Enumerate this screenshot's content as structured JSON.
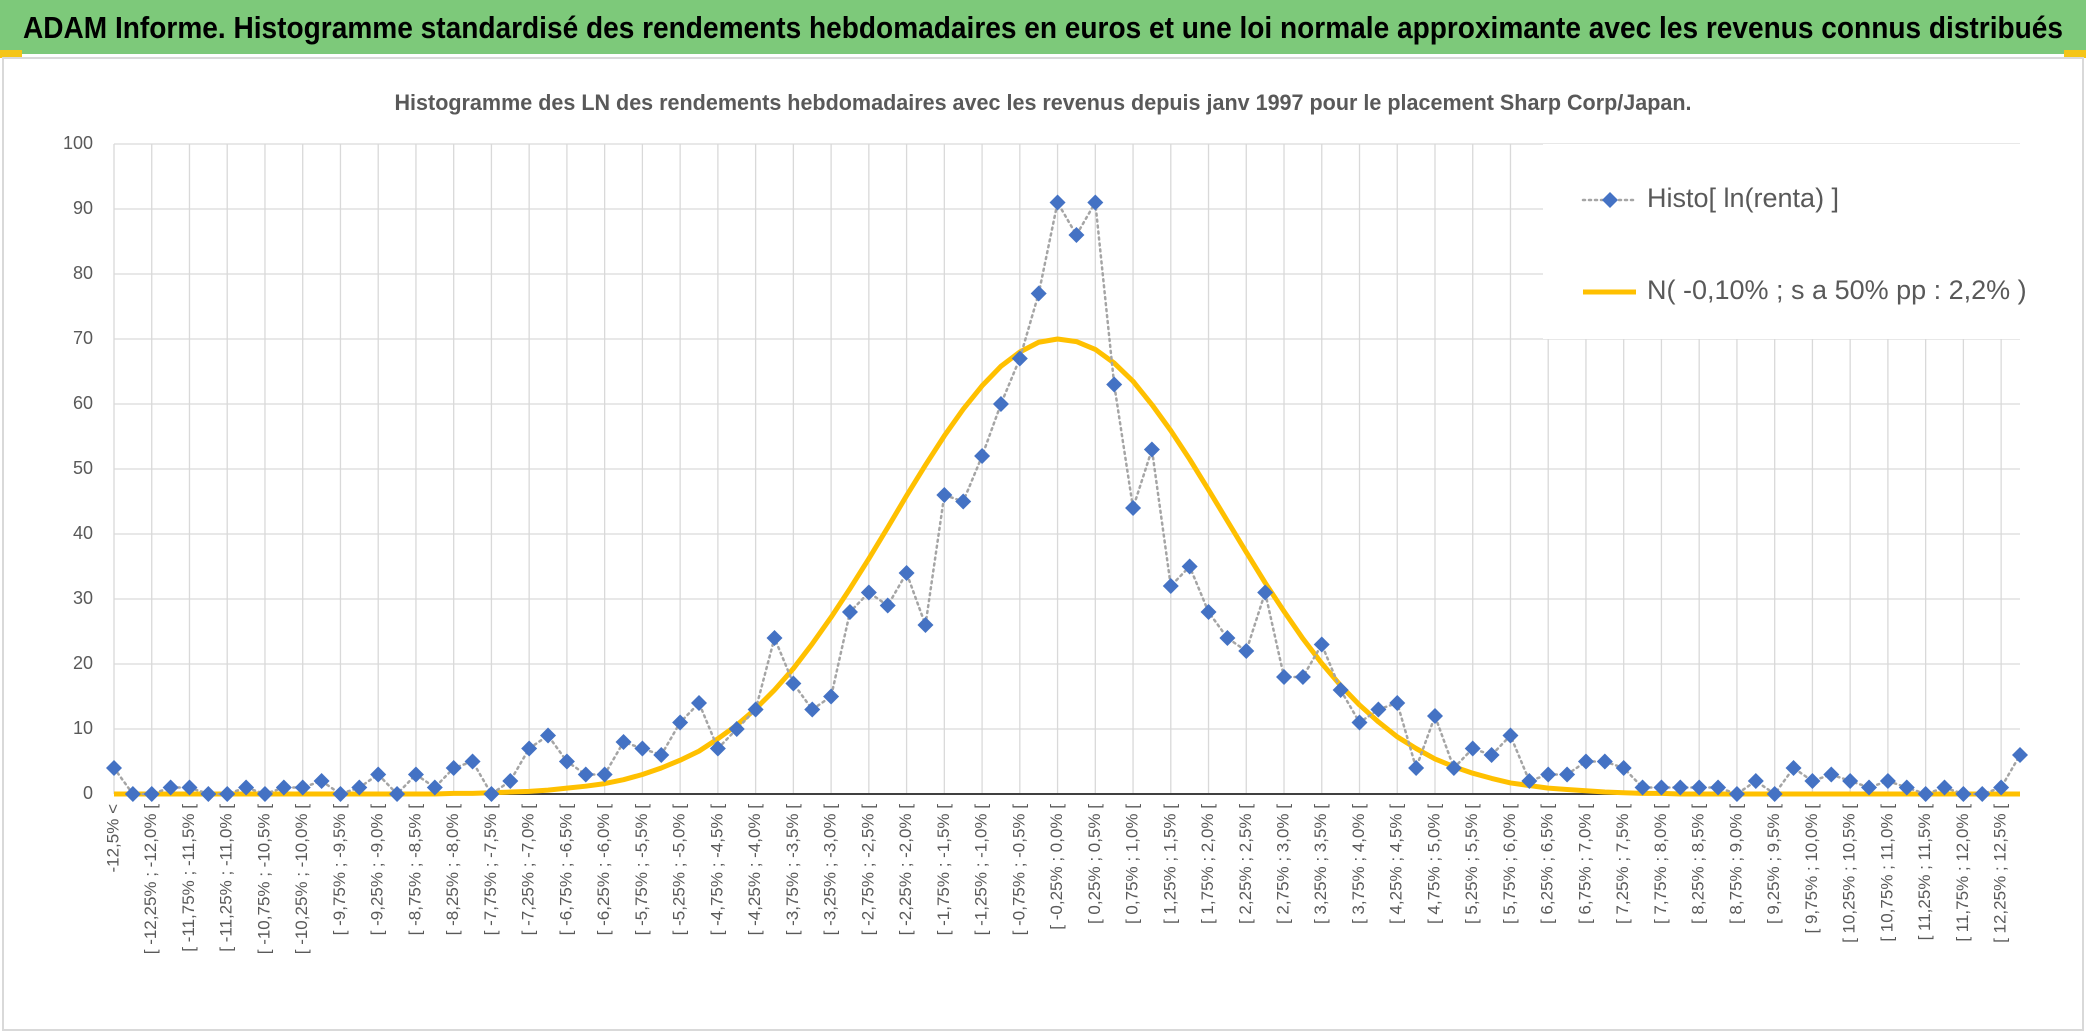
{
  "chart_data": {
    "type": "line",
    "title": "ADAM Informe. Histogramme standardisé des rendements hebdomadaires en euros et une loi normale approximante avec les revenus connus distribués",
    "subtitle": "Histogramme des LN des rendements hebdomadaires avec les revenus depuis janv 1997 pour le placement Sharp Corp/Japan.",
    "categories": [
      "-12,5% <",
      null,
      "[ -12,25% ; -12,0% [",
      null,
      "[ -11,75% ; -11,5% [",
      null,
      "[ -11,25% ; -11,0% [",
      null,
      "[ -10,75% ; -10,5% [",
      null,
      "[ -10,25% ; -10,0% [",
      null,
      "[ -9,75% ; -9,5% [",
      null,
      "[ -9,25% ; -9,0% [",
      null,
      "[ -8,75% ; -8,5% [",
      null,
      "[ -8,25% ; -8,0% [",
      null,
      "[ -7,75% ; -7,5% [",
      null,
      "[ -7,25% ; -7,0% [",
      null,
      "[ -6,75% ; -6,5% [",
      null,
      "[ -6,25% ; -6,0% [",
      null,
      "[ -5,75% ; -5,5% [",
      null,
      "[ -5,25% ; -5,0% [",
      null,
      "[ -4,75% ; -4,5% [",
      null,
      "[ -4,25% ; -4,0% [",
      null,
      "[ -3,75% ; -3,5% [",
      null,
      "[ -3,25% ; -3,0% [",
      null,
      "[ -2,75% ; -2,5% [",
      null,
      "[ -2,25% ; -2,0% [",
      null,
      "[ -1,75% ; -1,5% [",
      null,
      "[ -1,25% ; -1,0% [",
      null,
      "[ -0,75% ; -0,5% [",
      null,
      "[ -0,25% ; 0,0% [",
      null,
      "[ 0,25% ; 0,5% [",
      null,
      "[ 0,75% ; 1,0% [",
      null,
      "[ 1,25% ; 1,5% [",
      null,
      "[ 1,75% ; 2,0% [",
      null,
      "[ 2,25% ; 2,5% [",
      null,
      "[ 2,75% ; 3,0% [",
      null,
      "[ 3,25% ; 3,5% [",
      null,
      "[ 3,75% ; 4,0% [",
      null,
      "[ 4,25% ; 4,5% [",
      null,
      "[ 4,75% ; 5,0% [",
      null,
      "[ 5,25% ; 5,5% [",
      null,
      "[ 5,75% ; 6,0% [",
      null,
      "[ 6,25% ; 6,5% [",
      null,
      "[ 6,75% ; 7,0% [",
      null,
      "[ 7,25% ; 7,5% [",
      null,
      "[ 7,75% ; 8,0% [",
      null,
      "[ 8,25% ; 8,5% [",
      null,
      "[ 8,75% ; 9,0% [",
      null,
      "[ 9,25% ; 9,5% [",
      null,
      "[ 9,75% ; 10,0% [",
      null,
      "[ 10,25% ; 10,5% [",
      null,
      "[ 10,75% ; 11,0% [",
      null,
      "[ 11,25% ; 11,5% [",
      null,
      "[ 11,75% ; 12,0% [",
      null,
      "[ 12,25% ; 12,5% [",
      null
    ],
    "series": [
      {
        "name": "Histo[ ln(renta) ]",
        "color": "#4472c4",
        "line_color": "#a5a5a5",
        "marker": "diamond",
        "values": [
          4,
          0,
          0,
          1,
          1,
          0,
          0,
          1,
          0,
          1,
          1,
          2,
          0,
          1,
          3,
          0,
          3,
          1,
          4,
          5,
          0,
          2,
          7,
          9,
          5,
          3,
          3,
          8,
          7,
          6,
          11,
          14,
          7,
          10,
          13,
          24,
          17,
          13,
          15,
          28,
          31,
          29,
          34,
          26,
          46,
          45,
          52,
          60,
          67,
          77,
          91,
          86,
          91,
          63,
          44,
          53,
          32,
          35,
          28,
          24,
          22,
          31,
          18,
          18,
          23,
          16,
          11,
          13,
          14,
          4,
          12,
          4,
          7,
          6,
          9,
          2,
          3,
          3,
          5,
          5,
          4,
          1,
          1,
          1,
          1,
          1,
          0,
          2,
          0,
          4,
          2,
          3,
          2,
          1,
          2,
          1,
          0,
          1,
          0,
          0,
          1,
          6
        ]
      },
      {
        "name": "N( -0,10% ; s a 50% pp : 2,2% )",
        "color": "#ffc000",
        "marker": "none",
        "values": [
          0,
          0,
          0,
          0,
          0,
          0,
          0,
          0,
          0,
          0,
          0,
          0,
          0,
          0,
          0,
          0,
          0,
          0,
          0.1,
          0.1,
          0.2,
          0.3,
          0.4,
          0.6,
          0.9,
          1.2,
          1.6,
          2.2,
          3.0,
          4.0,
          5.2,
          6.6,
          8.5,
          10.6,
          13.1,
          16.0,
          19.3,
          23.1,
          27.2,
          31.6,
          36.2,
          41.0,
          45.9,
          50.6,
          55.1,
          59.2,
          62.8,
          65.8,
          68.0,
          69.5,
          70.0,
          69.6,
          68.4,
          66.3,
          63.5,
          59.9,
          55.9,
          51.5,
          46.8,
          42.0,
          37.2,
          32.5,
          28.1,
          23.9,
          20.1,
          16.7,
          13.7,
          11.1,
          8.8,
          7.0,
          5.4,
          4.2,
          3.2,
          2.4,
          1.7,
          1.3,
          0.9,
          0.7,
          0.5,
          0.3,
          0.2,
          0.1,
          0.1,
          0,
          0,
          0,
          0,
          0,
          0,
          0,
          0,
          0,
          0,
          0,
          0,
          0,
          0,
          0,
          0,
          0,
          0,
          0
        ]
      }
    ],
    "ylim": [
      0,
      100
    ],
    "yticks": [
      0,
      10,
      20,
      30,
      40,
      50,
      60,
      70,
      80,
      90,
      100
    ],
    "grid": true,
    "legend": "upper right"
  }
}
